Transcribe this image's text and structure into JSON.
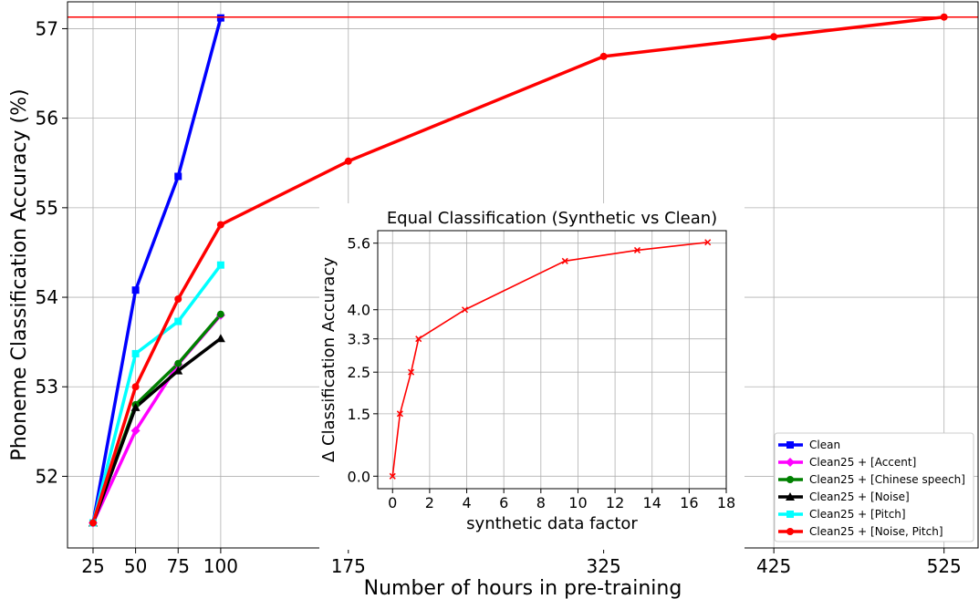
{
  "chart_data": [
    {
      "type": "line",
      "xlabel": "Number of hours in pre-training",
      "ylabel": "Phoneme Classification Accuracy (%)",
      "xlim": [
        10,
        545
      ],
      "ylim": [
        51.2,
        57.3
      ],
      "xticks": [
        25,
        50,
        75,
        100,
        175,
        325,
        425,
        525
      ],
      "yticks": [
        52,
        53,
        54,
        55,
        56,
        57
      ],
      "grid": true,
      "legend_position": "lower-right",
      "reference_line": {
        "y": 57.13,
        "color": "#ff0000"
      },
      "series": [
        {
          "name": "Clean",
          "color": "#0000ff",
          "marker": "square",
          "x": [
            25,
            50,
            75,
            100
          ],
          "y": [
            51.48,
            54.08,
            55.35,
            57.12
          ]
        },
        {
          "name": "Clean25 + [Accent]",
          "color": "#ff00ff",
          "marker": "diamond",
          "x": [
            25,
            50,
            75,
            100
          ],
          "y": [
            51.48,
            52.51,
            53.25,
            53.8
          ]
        },
        {
          "name": "Clean25 + [Chinese speech]",
          "color": "#008000",
          "marker": "circle",
          "x": [
            25,
            50,
            75,
            100
          ],
          "y": [
            51.48,
            52.8,
            53.26,
            53.81
          ]
        },
        {
          "name": "Clean25 + [Noise]",
          "color": "#000000",
          "marker": "triangle",
          "x": [
            25,
            50,
            75,
            100
          ],
          "y": [
            51.48,
            52.77,
            53.18,
            53.54
          ]
        },
        {
          "name": "Clean25 + [Pitch]",
          "color": "#00ffff",
          "marker": "square",
          "x": [
            25,
            50,
            75,
            100
          ],
          "y": [
            51.48,
            53.37,
            53.73,
            54.36
          ]
        },
        {
          "name": "Clean25 + [Noise, Pitch]",
          "color": "#ff0000",
          "marker": "circle",
          "x": [
            25,
            50,
            75,
            100,
            175,
            325,
            425,
            525
          ],
          "y": [
            51.48,
            53.0,
            53.98,
            54.81,
            55.52,
            56.69,
            56.91,
            57.13
          ]
        }
      ]
    },
    {
      "type": "line",
      "title": "Equal Classification (Synthetic vs Clean)",
      "xlabel": "synthetic data factor",
      "ylabel": "Δ Classification Accuracy",
      "xlim": [
        -0.8,
        18
      ],
      "ylim": [
        -0.3,
        5.9
      ],
      "xticks": [
        0,
        2,
        4,
        6,
        8,
        10,
        12,
        14,
        16,
        18
      ],
      "yticks": [
        0.0,
        1.5,
        2.5,
        3.3,
        4.0,
        5.6
      ],
      "ytick_labels": [
        "0.0",
        "1.5",
        "2.5",
        "3.3",
        "4.0",
        "5.6"
      ],
      "grid": true,
      "series": [
        {
          "color": "#ff0000",
          "marker": "x",
          "x": [
            0,
            0.4,
            1.0,
            1.4,
            3.9,
            9.3,
            13.2,
            17.0
          ],
          "y": [
            0.0,
            1.5,
            2.5,
            3.3,
            4.0,
            5.17,
            5.43,
            5.62
          ]
        }
      ]
    }
  ]
}
